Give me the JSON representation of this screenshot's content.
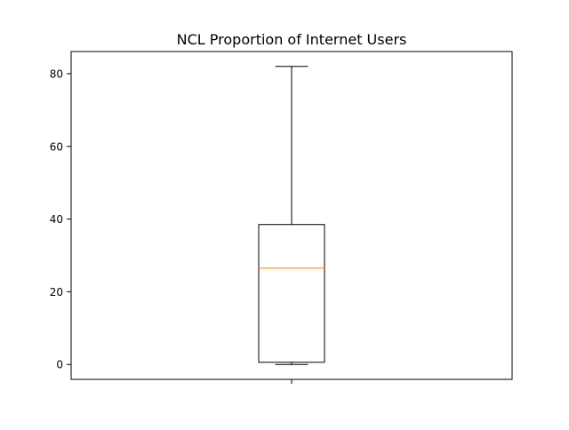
{
  "chart_data": {
    "type": "box",
    "title": "NCL Proportion of Internet Users",
    "xlabel": "",
    "ylabel": "",
    "ylim": [
      -4.1,
      86.1
    ],
    "yticks": [
      0,
      20,
      40,
      60,
      80
    ],
    "grid": false,
    "legend": "none",
    "boxes": [
      {
        "whisker_low": 0.0,
        "q1": 0.6,
        "median": 26.5,
        "q3": 38.5,
        "whisker_high": 82.0
      }
    ],
    "colors": {
      "box": "#000000",
      "median": "#ff7f0e",
      "axes": "#000000"
    }
  }
}
